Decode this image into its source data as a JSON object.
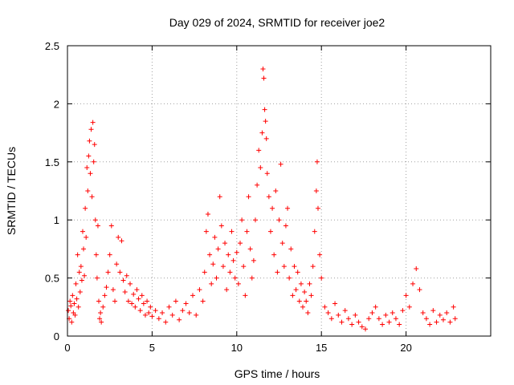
{
  "chart_data": {
    "type": "scatter",
    "title": "Day 029 of 2024, SRMTID for receiver joe2",
    "xlabel": "GPS time / hours",
    "ylabel": "SRMTID / TECUs",
    "xlim": [
      0,
      25
    ],
    "ylim": [
      0,
      2.5
    ],
    "xticks": [
      0,
      5,
      10,
      15,
      20
    ],
    "xtick_labels": [
      "0",
      "5",
      "10",
      "15",
      "20"
    ],
    "yticks": [
      0,
      0.5,
      1,
      1.5,
      2,
      2.5
    ],
    "ytick_labels": [
      "0",
      "0.5",
      "1",
      "1.5",
      "2",
      "2.5"
    ],
    "grid": true,
    "marker": "+",
    "color": "#ff0000",
    "series": [
      {
        "name": "SRMTID",
        "points": [
          [
            0.05,
            0.22
          ],
          [
            0.1,
            0.15
          ],
          [
            0.15,
            0.3
          ],
          [
            0.2,
            0.26
          ],
          [
            0.25,
            0.12
          ],
          [
            0.3,
            0.35
          ],
          [
            0.35,
            0.2
          ],
          [
            0.4,
            0.28
          ],
          [
            0.45,
            0.18
          ],
          [
            0.5,
            0.45
          ],
          [
            0.55,
            0.32
          ],
          [
            0.6,
            0.7
          ],
          [
            0.65,
            0.25
          ],
          [
            0.7,
            0.55
          ],
          [
            0.75,
            0.38
          ],
          [
            0.8,
            0.6
          ],
          [
            0.85,
            0.48
          ],
          [
            0.9,
            0.9
          ],
          [
            0.95,
            0.75
          ],
          [
            1.0,
            0.52
          ],
          [
            1.05,
            1.1
          ],
          [
            1.1,
            0.85
          ],
          [
            1.15,
            1.45
          ],
          [
            1.2,
            1.25
          ],
          [
            1.25,
            1.55
          ],
          [
            1.3,
            1.68
          ],
          [
            1.35,
            1.4
          ],
          [
            1.4,
            1.78
          ],
          [
            1.45,
            1.2
          ],
          [
            1.5,
            1.84
          ],
          [
            1.55,
            1.5
          ],
          [
            1.6,
            1.65
          ],
          [
            1.65,
            1.0
          ],
          [
            1.7,
            0.7
          ],
          [
            1.75,
            0.5
          ],
          [
            1.8,
            0.95
          ],
          [
            1.85,
            0.3
          ],
          [
            1.9,
            0.15
          ],
          [
            1.95,
            0.2
          ],
          [
            2.0,
            0.12
          ],
          [
            2.1,
            0.25
          ],
          [
            2.2,
            0.35
          ],
          [
            2.3,
            0.42
          ],
          [
            2.4,
            0.55
          ],
          [
            2.5,
            0.7
          ],
          [
            2.6,
            0.95
          ],
          [
            2.7,
            0.4
          ],
          [
            2.8,
            0.3
          ],
          [
            2.9,
            0.62
          ],
          [
            3.0,
            0.85
          ],
          [
            3.1,
            0.55
          ],
          [
            3.2,
            0.82
          ],
          [
            3.3,
            0.48
          ],
          [
            3.4,
            0.38
          ],
          [
            3.5,
            0.52
          ],
          [
            3.6,
            0.3
          ],
          [
            3.7,
            0.45
          ],
          [
            3.8,
            0.28
          ],
          [
            3.9,
            0.36
          ],
          [
            4.0,
            0.25
          ],
          [
            4.1,
            0.4
          ],
          [
            4.2,
            0.32
          ],
          [
            4.3,
            0.22
          ],
          [
            4.4,
            0.35
          ],
          [
            4.5,
            0.28
          ],
          [
            4.6,
            0.18
          ],
          [
            4.7,
            0.3
          ],
          [
            4.8,
            0.2
          ],
          [
            4.9,
            0.25
          ],
          [
            5.0,
            0.17
          ],
          [
            5.2,
            0.22
          ],
          [
            5.4,
            0.15
          ],
          [
            5.6,
            0.2
          ],
          [
            5.8,
            0.12
          ],
          [
            6.0,
            0.25
          ],
          [
            6.2,
            0.18
          ],
          [
            6.4,
            0.3
          ],
          [
            6.6,
            0.14
          ],
          [
            6.8,
            0.22
          ],
          [
            7.0,
            0.28
          ],
          [
            7.2,
            0.2
          ],
          [
            7.4,
            0.35
          ],
          [
            7.6,
            0.18
          ],
          [
            7.8,
            0.4
          ],
          [
            8.0,
            0.3
          ],
          [
            8.1,
            0.55
          ],
          [
            8.2,
            0.9
          ],
          [
            8.3,
            1.05
          ],
          [
            8.4,
            0.7
          ],
          [
            8.5,
            0.45
          ],
          [
            8.6,
            0.62
          ],
          [
            8.7,
            0.85
          ],
          [
            8.8,
            0.5
          ],
          [
            8.9,
            0.75
          ],
          [
            9.0,
            1.2
          ],
          [
            9.1,
            0.95
          ],
          [
            9.2,
            0.6
          ],
          [
            9.3,
            0.8
          ],
          [
            9.4,
            0.4
          ],
          [
            9.5,
            0.7
          ],
          [
            9.6,
            0.55
          ],
          [
            9.7,
            0.9
          ],
          [
            9.8,
            0.65
          ],
          [
            9.9,
            0.5
          ],
          [
            10.0,
            0.72
          ],
          [
            10.1,
            0.45
          ],
          [
            10.2,
            0.8
          ],
          [
            10.3,
            1.0
          ],
          [
            10.4,
            0.6
          ],
          [
            10.5,
            0.35
          ],
          [
            10.6,
            0.9
          ],
          [
            10.7,
            1.2
          ],
          [
            10.8,
            0.75
          ],
          [
            10.9,
            0.5
          ],
          [
            11.0,
            0.65
          ],
          [
            11.1,
            1.0
          ],
          [
            11.2,
            1.3
          ],
          [
            11.3,
            1.6
          ],
          [
            11.4,
            1.45
          ],
          [
            11.5,
            1.75
          ],
          [
            11.55,
            2.3
          ],
          [
            11.6,
            2.22
          ],
          [
            11.65,
            1.95
          ],
          [
            11.7,
            1.85
          ],
          [
            11.75,
            1.7
          ],
          [
            11.8,
            1.4
          ],
          [
            11.9,
            1.2
          ],
          [
            12.0,
            0.9
          ],
          [
            12.1,
            1.1
          ],
          [
            12.2,
            0.7
          ],
          [
            12.3,
            1.25
          ],
          [
            12.4,
            0.55
          ],
          [
            12.5,
            1.0
          ],
          [
            12.6,
            1.48
          ],
          [
            12.7,
            0.8
          ],
          [
            12.8,
            0.6
          ],
          [
            12.9,
            0.95
          ],
          [
            13.0,
            1.1
          ],
          [
            13.1,
            0.5
          ],
          [
            13.2,
            0.75
          ],
          [
            13.3,
            0.35
          ],
          [
            13.4,
            0.6
          ],
          [
            13.5,
            0.4
          ],
          [
            13.6,
            0.55
          ],
          [
            13.7,
            0.3
          ],
          [
            13.8,
            0.45
          ],
          [
            13.9,
            0.25
          ],
          [
            14.0,
            0.38
          ],
          [
            14.1,
            0.3
          ],
          [
            14.2,
            0.2
          ],
          [
            14.3,
            0.45
          ],
          [
            14.4,
            0.35
          ],
          [
            14.5,
            0.6
          ],
          [
            14.6,
            0.9
          ],
          [
            14.7,
            1.25
          ],
          [
            14.75,
            1.5
          ],
          [
            14.8,
            1.1
          ],
          [
            14.9,
            0.7
          ],
          [
            15.0,
            0.5
          ],
          [
            15.2,
            0.25
          ],
          [
            15.4,
            0.2
          ],
          [
            15.6,
            0.15
          ],
          [
            15.8,
            0.28
          ],
          [
            16.0,
            0.18
          ],
          [
            16.2,
            0.12
          ],
          [
            16.4,
            0.22
          ],
          [
            16.6,
            0.15
          ],
          [
            16.8,
            0.1
          ],
          [
            17.0,
            0.18
          ],
          [
            17.2,
            0.12
          ],
          [
            17.4,
            0.08
          ],
          [
            17.6,
            0.06
          ],
          [
            17.8,
            0.15
          ],
          [
            18.0,
            0.2
          ],
          [
            18.2,
            0.25
          ],
          [
            18.4,
            0.15
          ],
          [
            18.6,
            0.1
          ],
          [
            18.8,
            0.18
          ],
          [
            19.0,
            0.12
          ],
          [
            19.2,
            0.2
          ],
          [
            19.4,
            0.15
          ],
          [
            19.6,
            0.1
          ],
          [
            19.8,
            0.22
          ],
          [
            20.0,
            0.35
          ],
          [
            20.2,
            0.25
          ],
          [
            20.4,
            0.45
          ],
          [
            20.6,
            0.58
          ],
          [
            20.8,
            0.4
          ],
          [
            21.0,
            0.2
          ],
          [
            21.2,
            0.15
          ],
          [
            21.4,
            0.1
          ],
          [
            21.6,
            0.22
          ],
          [
            21.8,
            0.12
          ],
          [
            22.0,
            0.18
          ],
          [
            22.2,
            0.14
          ],
          [
            22.4,
            0.2
          ],
          [
            22.6,
            0.12
          ],
          [
            22.8,
            0.25
          ],
          [
            22.9,
            0.15
          ]
        ]
      }
    ]
  }
}
